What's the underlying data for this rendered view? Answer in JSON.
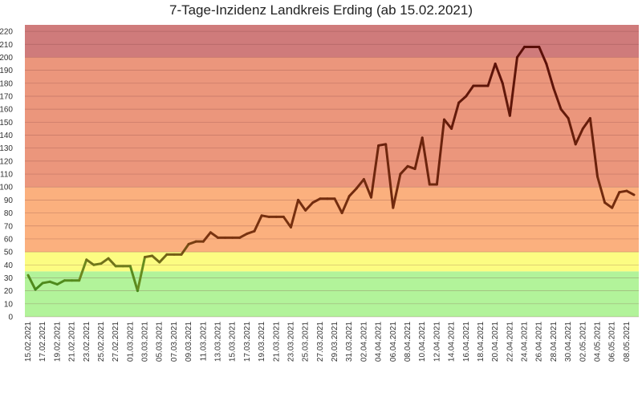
{
  "chart_data": {
    "type": "line",
    "title": "7-Tage-Inzidenz Landkreis Erding (ab 15.02.2021)",
    "xlabel": "",
    "ylabel": "",
    "ylim": [
      0,
      225
    ],
    "yticks": [
      0,
      10,
      20,
      30,
      40,
      50,
      60,
      70,
      80,
      90,
      100,
      110,
      120,
      130,
      140,
      150,
      160,
      170,
      180,
      190,
      200,
      210,
      220
    ],
    "grid": true,
    "legend": "none",
    "bands": [
      {
        "from": 0,
        "to": 35,
        "color": "#b2f39a"
      },
      {
        "from": 35,
        "to": 50,
        "color": "#fcfc82"
      },
      {
        "from": 50,
        "to": 100,
        "color": "#fbb07e"
      },
      {
        "from": 100,
        "to": 200,
        "color": "#eb967c"
      },
      {
        "from": 200,
        "to": 225,
        "color": "#cf7b7b"
      }
    ],
    "x_tick_labels": [
      "15.02.2021",
      "17.02.2021",
      "19.02.2021",
      "21.02.2021",
      "23.02.2021",
      "25.02.2021",
      "27.02.2021",
      "01.03.2021",
      "03.03.2021",
      "05.03.2021",
      "07.03.2021",
      "09.03.2021",
      "11.03.2021",
      "13.03.2021",
      "15.03.2021",
      "17.03.2021",
      "19.03.2021",
      "21.03.2021",
      "23.03.2021",
      "25.03.2021",
      "27.03.2021",
      "29.03.2021",
      "31.03.2021",
      "02.04.2021",
      "04.04.2021",
      "06.04.2021",
      "08.04.2021",
      "10.04.2021",
      "12.04.2021",
      "14.04.2021",
      "16.04.2021",
      "18.04.2021",
      "20.04.2021",
      "22.04.2021",
      "24.04.2021",
      "26.04.2021",
      "28.04.2021",
      "30.04.2021",
      "02.05.2021",
      "04.05.2021",
      "06.05.2021",
      "08.05.2021"
    ],
    "x_start": "15.02.2021",
    "x_end": "09.05.2021",
    "values": [
      32,
      21,
      26,
      27,
      25,
      28,
      28,
      28,
      44,
      40,
      41,
      45,
      39,
      39,
      39,
      20,
      46,
      47,
      42,
      48,
      48,
      48,
      56,
      58,
      58,
      65,
      61,
      61,
      61,
      61,
      64,
      66,
      78,
      77,
      77,
      77,
      69,
      90,
      82,
      88,
      91,
      91,
      91,
      80,
      93,
      99,
      106,
      92,
      132,
      133,
      84,
      110,
      116,
      114,
      138,
      102,
      102,
      152,
      145,
      165,
      170,
      178,
      178,
      178,
      195,
      180,
      155,
      200,
      208,
      208,
      208,
      195,
      176,
      160,
      153,
      133,
      145,
      153,
      108,
      88,
      84,
      96,
      97,
      94
    ],
    "line_colors": {
      "green": "#3a8a1c",
      "olive": "#6d8c1e",
      "brown": "#7a3410",
      "darkred": "#5a0f08"
    }
  }
}
